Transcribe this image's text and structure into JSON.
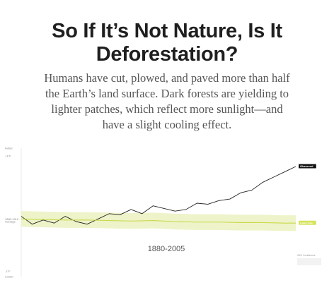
{
  "headline": {
    "title_line1": "So If It’s Not Nature, Is It",
    "title_line2": "Deforestation?",
    "subtitle_line1": "Humans have cut, plowed, and paved more than half",
    "subtitle_line2": "the Earth’s land surface. Dark forests are yielding to",
    "subtitle_line3": "lighter patches, which reflect more sunlight—and",
    "subtitle_line4": "have a slight cooling effect."
  },
  "chart_data": {
    "type": "line",
    "title": "",
    "xlabel": "",
    "ylabel": "",
    "x_range": [
      1880,
      2005
    ],
    "ylim": [
      -1.1,
      1.35
    ],
    "period_label": "1880-2005",
    "y_ticks": [
      {
        "value": 1.35,
        "label": "Hotter"
      },
      {
        "value": 1.2,
        "label": "+1°F"
      },
      {
        "value": 0.0,
        "label": "1880-1910"
      },
      {
        "value": -0.05,
        "label": "Average"
      },
      {
        "value": -1.0,
        "label": "-1°F"
      },
      {
        "value": -1.1,
        "label": "Colder"
      }
    ],
    "confidence_label": "95% Confidence",
    "series": [
      {
        "name": "Observed",
        "color": "#222222",
        "label_bg": "#111111",
        "label_fg": "#ffffff",
        "x": [
          1880,
          1885,
          1890,
          1895,
          1900,
          1905,
          1910,
          1915,
          1920,
          1925,
          1930,
          1935,
          1940,
          1945,
          1950,
          1955,
          1960,
          1965,
          1970,
          1975,
          1980,
          1985,
          1990,
          1995,
          2000,
          2005
        ],
        "values": [
          0.05,
          -0.1,
          -0.02,
          -0.08,
          0.05,
          -0.05,
          -0.1,
          0.0,
          0.1,
          0.08,
          0.18,
          0.1,
          0.25,
          0.2,
          0.15,
          0.18,
          0.3,
          0.28,
          0.35,
          0.38,
          0.5,
          0.55,
          0.7,
          0.8,
          0.9,
          1.0
        ]
      },
      {
        "name": "Land Use",
        "color": "#c9d94a",
        "label_bg": "#d6e35a",
        "label_fg": "#ffffff",
        "band_color": "#eef3c9",
        "band_halfwidth": 0.15,
        "x": [
          1880,
          1890,
          1900,
          1910,
          1920,
          1930,
          1940,
          1950,
          1960,
          1970,
          1980,
          1990,
          2000,
          2005
        ],
        "values": [
          0.0,
          -0.01,
          -0.02,
          -0.02,
          -0.03,
          -0.04,
          -0.03,
          -0.05,
          -0.06,
          -0.06,
          -0.07,
          -0.07,
          -0.08,
          -0.08
        ]
      }
    ]
  }
}
